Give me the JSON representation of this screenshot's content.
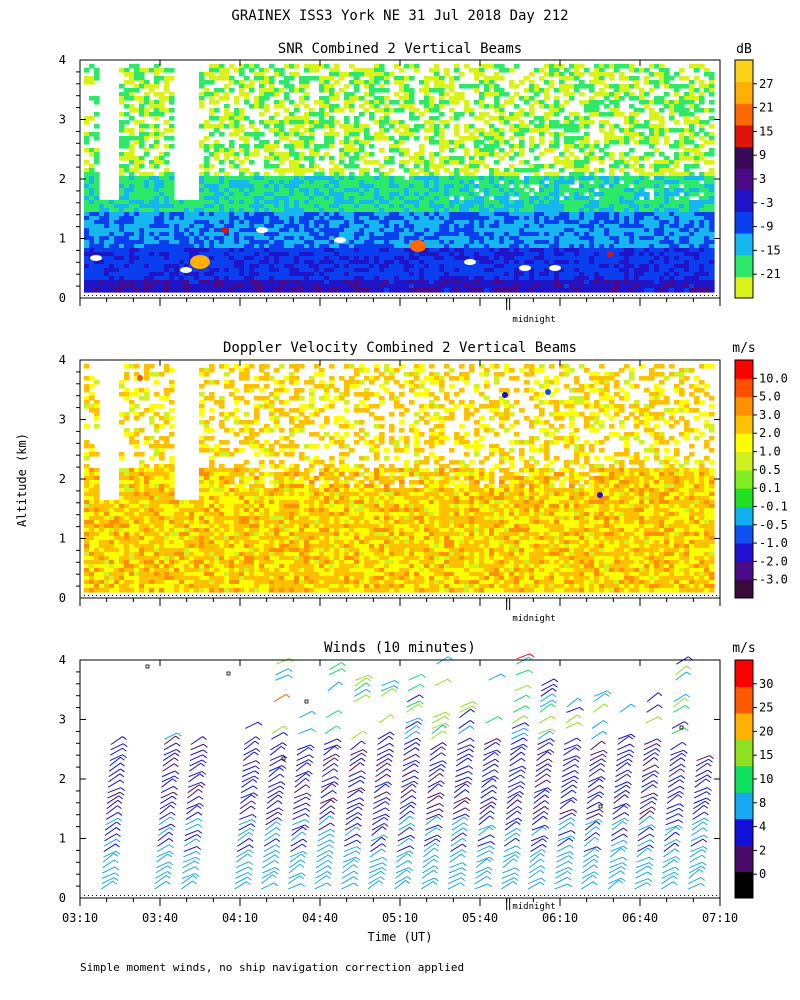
{
  "figure": {
    "title": "GRAINEX ISS3 York NE  31 Jul 2018 Day 212",
    "ylabel": "Altitude (km)",
    "xlabel": "Time (UT)",
    "footnote": "Simple moment winds, no ship navigation correction applied",
    "midnight_label": "midnight"
  },
  "chart_data": [
    {
      "type": "heatmap",
      "title": "SNR Combined 2 Vertical Beams",
      "ylim": [
        0,
        4
      ],
      "yticks": [
        "0",
        "1",
        "2",
        "3",
        "4"
      ],
      "x_range_ut": [
        "03:10",
        "07:10"
      ],
      "colorbar": {
        "unit": "dB",
        "ticks": [
          "27",
          "21",
          "15",
          "9",
          "3",
          "-3",
          "-9",
          "-15",
          "-21"
        ],
        "colors": [
          "#d9f21a",
          "#2ee86a",
          "#16b7f0",
          "#0a3ff0",
          "#1f14c8",
          "#4a0a86",
          "#3a0a5a",
          "#e0140c",
          "#ff6a00",
          "#ffb000",
          "#ffd21a"
        ]
      }
    },
    {
      "type": "heatmap",
      "title": "Doppler Velocity Combined 2 Vertical Beams",
      "ylim": [
        0,
        4
      ],
      "yticks": [
        "0",
        "1",
        "2",
        "3",
        "4"
      ],
      "x_range_ut": [
        "03:10",
        "07:10"
      ],
      "colorbar": {
        "unit": "m/s",
        "ticks": [
          "10.0",
          "5.0",
          "3.0",
          "2.0",
          "1.0",
          "0.5",
          "0.1",
          "-0.1",
          "-0.5",
          "-1.0",
          "-2.0",
          "-3.0"
        ],
        "colors": [
          "#3a0a3a",
          "#4a0a8a",
          "#2010d0",
          "#1050f0",
          "#10b0f0",
          "#20e020",
          "#80f020",
          "#d0f020",
          "#ffff00",
          "#ffc000",
          "#ff9000",
          "#ff5000",
          "#ff0000"
        ]
      }
    },
    {
      "type": "wind-barbs",
      "title": "Winds (10 minutes)",
      "ylim": [
        0,
        4
      ],
      "yticks": [
        "0",
        "1",
        "2",
        "3",
        "4"
      ],
      "xticks": [
        "03:10",
        "03:40",
        "04:10",
        "04:40",
        "05:10",
        "05:40",
        "06:10",
        "06:40",
        "07:10"
      ],
      "profile_times_ut": [
        "03:20",
        "03:40",
        "03:50",
        "04:10",
        "04:20",
        "04:30",
        "04:40",
        "04:50",
        "05:00",
        "05:10",
        "05:20",
        "05:30",
        "05:40",
        "05:50",
        "06:00",
        "06:10",
        "06:20",
        "06:30",
        "06:40",
        "06:50",
        "07:00"
      ],
      "colorbar": {
        "unit": "m/s",
        "ticks": [
          "30",
          "25",
          "20",
          "15",
          "10",
          "8",
          "4",
          "2",
          "0"
        ],
        "colors": [
          "#000000",
          "#4a0a6a",
          "#1010d8",
          "#16a8f0",
          "#10e060",
          "#90e020",
          "#ffb000",
          "#ff5a00",
          "#ff0000"
        ]
      }
    }
  ]
}
